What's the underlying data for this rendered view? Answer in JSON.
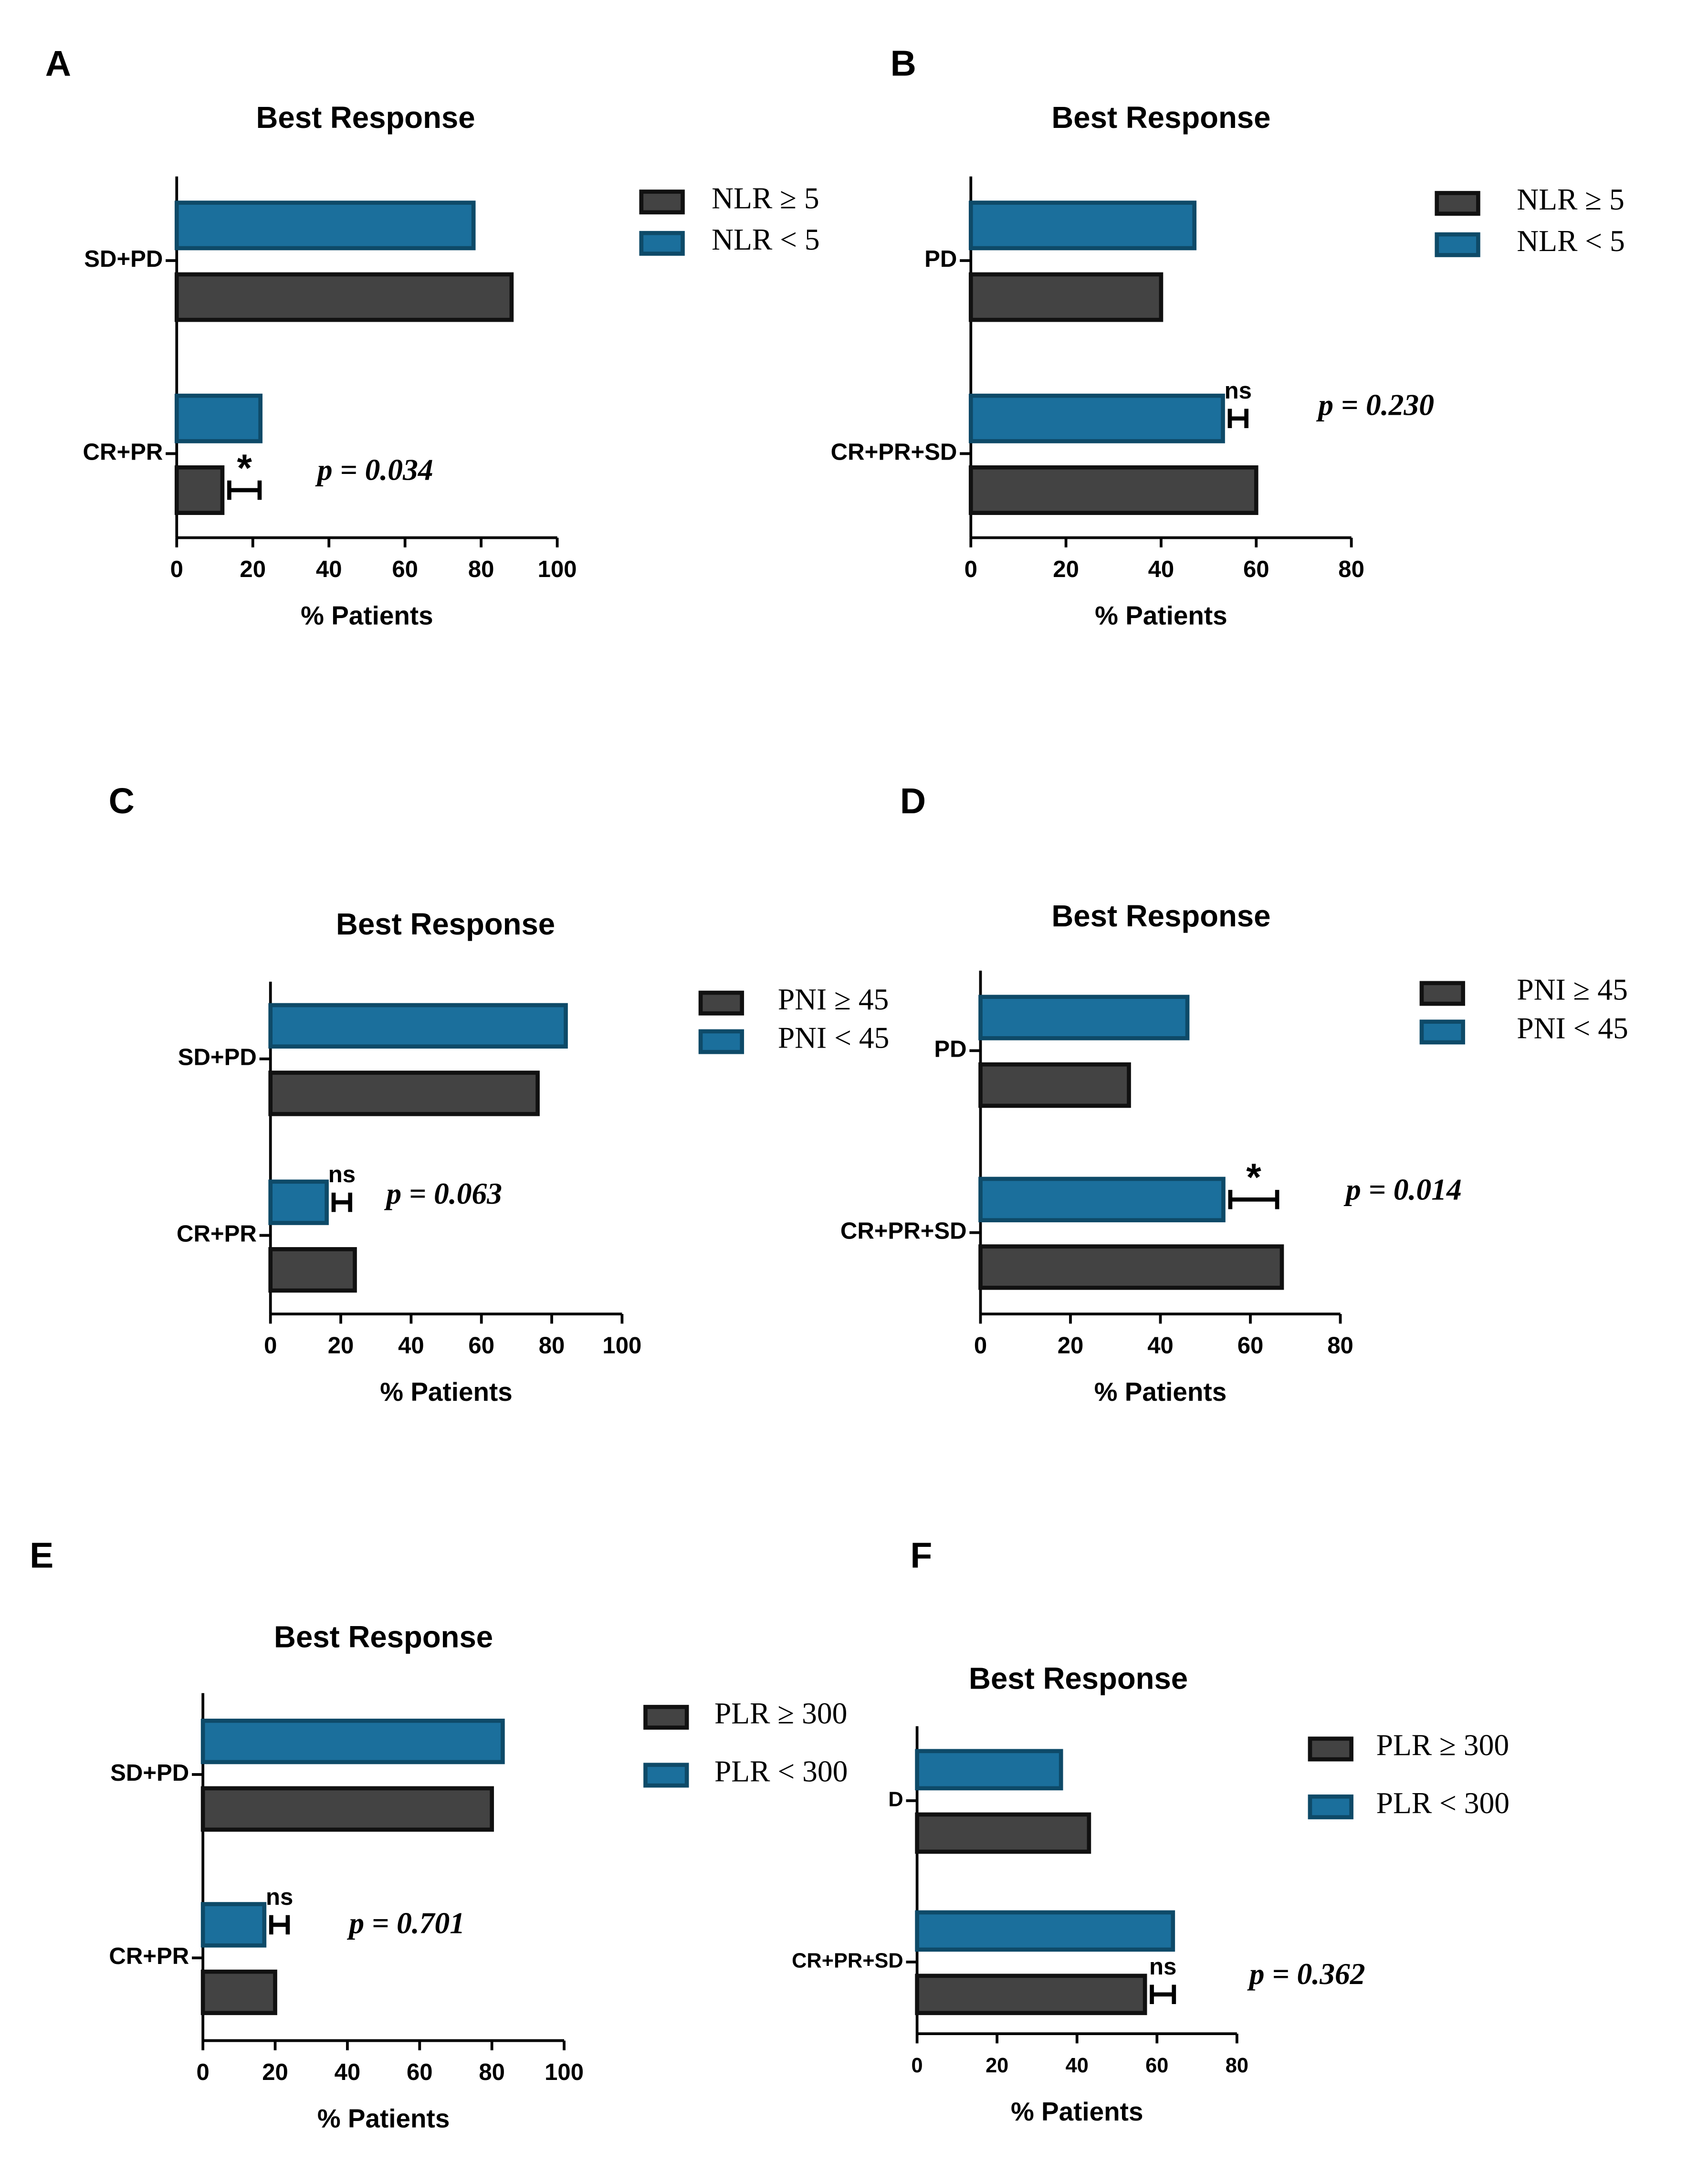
{
  "chart_data": [
    {
      "type": "bar",
      "orientation": "horizontal",
      "panel": "A",
      "title": "Best Response",
      "xlabel": "% Patients",
      "categories": [
        "SD+PD",
        "CR+PR"
      ],
      "series": [
        {
          "name": "NLR ≥ 5",
          "color": "#434343",
          "values": [
            88,
            12
          ]
        },
        {
          "name": "NLR < 5",
          "color": "#1b6f9c",
          "values": [
            78,
            22
          ]
        }
      ],
      "xlim": [
        0,
        100
      ],
      "xticks": [
        0,
        20,
        40,
        60,
        80,
        100
      ],
      "annotations": {
        "significance": "*",
        "p_value": "p = 0.034"
      }
    },
    {
      "type": "bar",
      "orientation": "horizontal",
      "panel": "B",
      "title": "Best Response",
      "xlabel": "% Patients",
      "categories": [
        "PD",
        "CR+PR+SD"
      ],
      "series": [
        {
          "name": "NLR ≥ 5",
          "color": "#434343",
          "values": [
            40,
            60
          ]
        },
        {
          "name": "NLR < 5",
          "color": "#1b6f9c",
          "values": [
            47,
            53
          ]
        }
      ],
      "xlim": [
        0,
        80
      ],
      "xticks": [
        0,
        20,
        40,
        60,
        80
      ],
      "annotations": {
        "significance": "ns",
        "p_value": "p = 0.230"
      }
    },
    {
      "type": "bar",
      "orientation": "horizontal",
      "panel": "C",
      "title": "Best Response",
      "xlabel": "% Patients",
      "categories": [
        "SD+PD",
        "CR+PR"
      ],
      "series": [
        {
          "name": "PNI ≥ 45",
          "color": "#434343",
          "values": [
            76,
            24
          ]
        },
        {
          "name": "PNI < 45",
          "color": "#1b6f9c",
          "values": [
            84,
            16
          ]
        }
      ],
      "xlim": [
        0,
        100
      ],
      "xticks": [
        0,
        20,
        40,
        60,
        80,
        100
      ],
      "annotations": {
        "significance": "ns",
        "p_value": "p = 0.063"
      }
    },
    {
      "type": "bar",
      "orientation": "horizontal",
      "panel": "D",
      "title": "Best Response",
      "xlabel": "% Patients",
      "categories": [
        "PD",
        "CR+PR+SD"
      ],
      "series": [
        {
          "name": "PNI ≥ 45",
          "color": "#434343",
          "values": [
            33,
            67
          ]
        },
        {
          "name": "PNI < 45",
          "color": "#1b6f9c",
          "values": [
            46,
            54
          ]
        }
      ],
      "xlim": [
        0,
        80
      ],
      "xticks": [
        0,
        20,
        40,
        60,
        80
      ],
      "annotations": {
        "significance": "*",
        "p_value": "p = 0.014"
      }
    },
    {
      "type": "bar",
      "orientation": "horizontal",
      "panel": "E",
      "title": "Best Response",
      "xlabel": "% Patients",
      "categories": [
        "SD+PD",
        "CR+PR"
      ],
      "series": [
        {
          "name": "PLR ≥ 300",
          "color": "#434343",
          "values": [
            80,
            20
          ]
        },
        {
          "name": "PLR < 300",
          "color": "#1b6f9c",
          "values": [
            83,
            17
          ]
        }
      ],
      "xlim": [
        0,
        100
      ],
      "xticks": [
        0,
        20,
        40,
        60,
        80,
        100
      ],
      "annotations": {
        "significance": "ns",
        "p_value": "p = 0.701"
      }
    },
    {
      "type": "bar",
      "orientation": "horizontal",
      "panel": "F",
      "title": "Best Response",
      "xlabel": "% Patients",
      "categories": [
        "D",
        "CR+PR+SD"
      ],
      "series": [
        {
          "name": "PLR ≥ 300",
          "color": "#434343",
          "values": [
            43,
            57
          ]
        },
        {
          "name": "PLR < 300",
          "color": "#1b6f9c",
          "values": [
            36,
            64
          ]
        }
      ],
      "xlim": [
        0,
        80
      ],
      "xticks": [
        0,
        20,
        40,
        60,
        80
      ],
      "annotations": {
        "significance": "ns",
        "p_value": "p = 0.362"
      }
    }
  ]
}
